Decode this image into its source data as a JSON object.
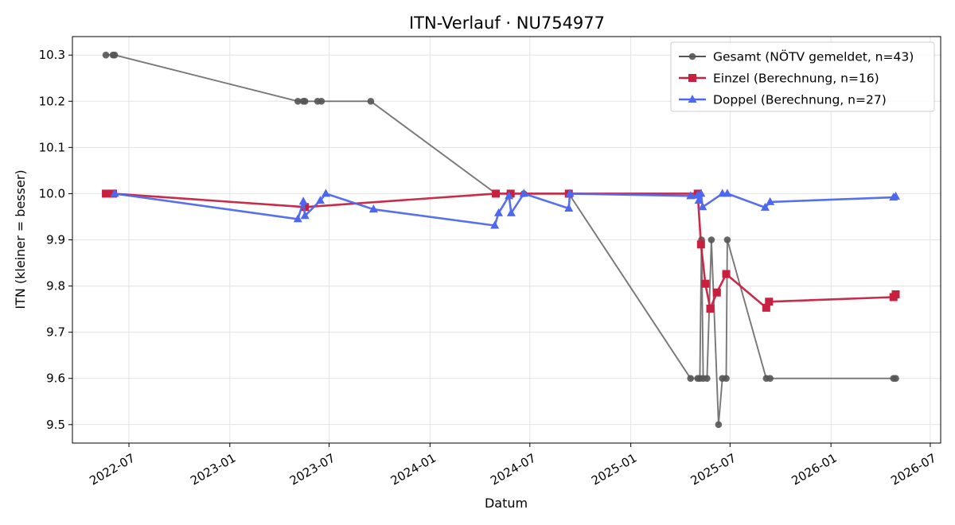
{
  "chart_data": {
    "type": "line",
    "title": "ITN-Verlauf · NU754977",
    "xlabel": "Datum",
    "ylabel": "ITN  (kleiner = besser)",
    "x_axis_type": "date",
    "xlim": [
      "2022-03-20",
      "2026-07-20"
    ],
    "ylim": [
      9.46,
      10.34
    ],
    "x_ticks": [
      "2022-07-01",
      "2023-01-01",
      "2023-07-01",
      "2024-01-01",
      "2024-07-01",
      "2025-01-01",
      "2025-07-01",
      "2026-01-01",
      "2026-07-01"
    ],
    "x_tick_labels": [
      "2022-07",
      "2023-01",
      "2023-07",
      "2024-01",
      "2024-07",
      "2025-01",
      "2025-07",
      "2026-01",
      "2026-07"
    ],
    "y_ticks": [
      9.5,
      9.6,
      9.7,
      9.8,
      9.9,
      10.0,
      10.1,
      10.2,
      10.3
    ],
    "y_tick_labels": [
      "9.5",
      "9.6",
      "9.7",
      "9.8",
      "9.9",
      "10.0",
      "10.1",
      "10.2",
      "10.3"
    ],
    "grid": true,
    "legend_position": "top-right",
    "series": [
      {
        "name": "Gesamt (NÖTV gemeldet, n=43)",
        "color": "#555555",
        "marker": "circle",
        "points": [
          {
            "x": "2022-05-20",
            "y": 10.3
          },
          {
            "x": "2022-06-02",
            "y": 10.3
          },
          {
            "x": "2022-06-05",
            "y": 10.3
          },
          {
            "x": "2023-05-05",
            "y": 10.2
          },
          {
            "x": "2023-05-15",
            "y": 10.2
          },
          {
            "x": "2023-05-18",
            "y": 10.2
          },
          {
            "x": "2023-06-10",
            "y": 10.2
          },
          {
            "x": "2023-06-17",
            "y": 10.2
          },
          {
            "x": "2023-09-15",
            "y": 10.2
          },
          {
            "x": "2024-04-30",
            "y": 10.0
          },
          {
            "x": "2024-05-25",
            "y": 10.0
          },
          {
            "x": "2024-06-20",
            "y": 10.0
          },
          {
            "x": "2024-09-10",
            "y": 10.0
          },
          {
            "x": "2025-04-20",
            "y": 9.6
          },
          {
            "x": "2025-05-03",
            "y": 9.6
          },
          {
            "x": "2025-05-07",
            "y": 9.6
          },
          {
            "x": "2025-05-10",
            "y": 9.9
          },
          {
            "x": "2025-05-13",
            "y": 9.6
          },
          {
            "x": "2025-05-20",
            "y": 9.6
          },
          {
            "x": "2025-05-28",
            "y": 9.9
          },
          {
            "x": "2025-06-10",
            "y": 9.5
          },
          {
            "x": "2025-06-17",
            "y": 9.6
          },
          {
            "x": "2025-06-24",
            "y": 9.6
          },
          {
            "x": "2025-06-26",
            "y": 9.9
          },
          {
            "x": "2025-09-05",
            "y": 9.6
          },
          {
            "x": "2025-09-12",
            "y": 9.6
          },
          {
            "x": "2026-04-25",
            "y": 9.6
          },
          {
            "x": "2026-04-29",
            "y": 9.6
          }
        ]
      },
      {
        "name": "Einzel (Berechnung, n=16)",
        "color": "#c8203f",
        "marker": "square",
        "points": [
          {
            "x": "2022-05-20",
            "y": 10.0
          },
          {
            "x": "2022-06-02",
            "y": 10.0
          },
          {
            "x": "2023-05-18",
            "y": 9.971
          },
          {
            "x": "2024-04-30",
            "y": 10.0
          },
          {
            "x": "2024-05-27",
            "y": 10.0
          },
          {
            "x": "2024-09-10",
            "y": 10.0
          },
          {
            "x": "2025-05-03",
            "y": 10.0
          },
          {
            "x": "2025-05-09",
            "y": 9.89
          },
          {
            "x": "2025-05-17",
            "y": 9.805
          },
          {
            "x": "2025-05-26",
            "y": 9.751
          },
          {
            "x": "2025-06-07",
            "y": 9.786
          },
          {
            "x": "2025-06-24",
            "y": 9.826
          },
          {
            "x": "2025-09-05",
            "y": 9.753
          },
          {
            "x": "2025-09-10",
            "y": 9.766
          },
          {
            "x": "2026-04-25",
            "y": 9.776
          },
          {
            "x": "2026-04-29",
            "y": 9.782
          }
        ]
      },
      {
        "name": "Doppel (Berechnung, n=27)",
        "color": "#4d68ee",
        "marker": "triangle",
        "points": [
          {
            "x": "2022-06-05",
            "y": 10.0
          },
          {
            "x": "2023-05-05",
            "y": 9.945
          },
          {
            "x": "2023-05-15",
            "y": 9.983
          },
          {
            "x": "2023-05-18",
            "y": 9.952
          },
          {
            "x": "2023-06-15",
            "y": 9.985
          },
          {
            "x": "2023-06-25",
            "y": 10.0
          },
          {
            "x": "2023-09-20",
            "y": 9.966
          },
          {
            "x": "2024-04-28",
            "y": 9.931
          },
          {
            "x": "2024-05-05",
            "y": 9.958
          },
          {
            "x": "2024-05-24",
            "y": 9.995
          },
          {
            "x": "2024-05-28",
            "y": 9.958
          },
          {
            "x": "2024-06-20",
            "y": 10.0
          },
          {
            "x": "2024-09-10",
            "y": 9.968
          },
          {
            "x": "2024-09-12",
            "y": 10.0
          },
          {
            "x": "2025-04-20",
            "y": 9.995
          },
          {
            "x": "2025-05-03",
            "y": 9.996
          },
          {
            "x": "2025-05-05",
            "y": 9.985
          },
          {
            "x": "2025-05-09",
            "y": 10.0
          },
          {
            "x": "2025-05-12",
            "y": 9.971
          },
          {
            "x": "2025-06-17",
            "y": 10.0
          },
          {
            "x": "2025-06-26",
            "y": 10.0
          },
          {
            "x": "2025-09-03",
            "y": 9.97
          },
          {
            "x": "2025-09-12",
            "y": 9.982
          },
          {
            "x": "2026-04-25",
            "y": 9.992
          },
          {
            "x": "2026-04-29",
            "y": 9.994
          }
        ]
      }
    ]
  }
}
